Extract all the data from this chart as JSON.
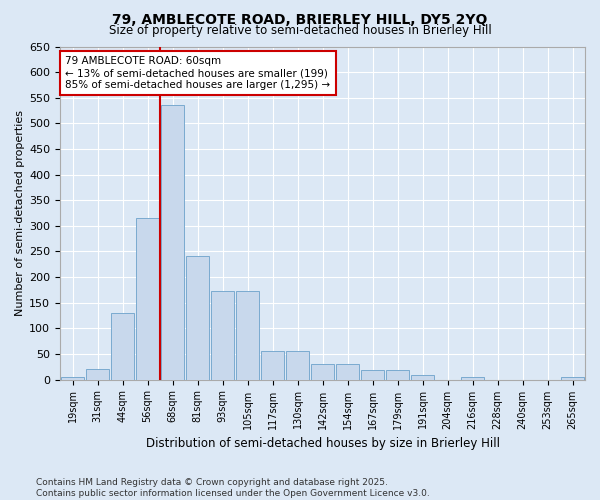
{
  "title": "79, AMBLECOTE ROAD, BRIERLEY HILL, DY5 2YQ",
  "subtitle": "Size of property relative to semi-detached houses in Brierley Hill",
  "xlabel": "Distribution of semi-detached houses by size in Brierley Hill",
  "ylabel": "Number of semi-detached properties",
  "categories": [
    "19sqm",
    "31sqm",
    "44sqm",
    "56sqm",
    "68sqm",
    "81sqm",
    "93sqm",
    "105sqm",
    "117sqm",
    "130sqm",
    "142sqm",
    "154sqm",
    "167sqm",
    "179sqm",
    "191sqm",
    "204sqm",
    "216sqm",
    "228sqm",
    "240sqm",
    "253sqm",
    "265sqm"
  ],
  "values": [
    5,
    20,
    130,
    315,
    535,
    242,
    172,
    172,
    55,
    55,
    30,
    30,
    18,
    18,
    8,
    0,
    5,
    0,
    0,
    0,
    5
  ],
  "bar_color": "#c8d8ec",
  "bar_edge_color": "#7aaad0",
  "red_line_x": 3.5,
  "red_line_color": "#cc0000",
  "annotation_title": "79 AMBLECOTE ROAD: 60sqm",
  "annotation_line1": "← 13% of semi-detached houses are smaller (199)",
  "annotation_line2": "85% of semi-detached houses are larger (1,295) →",
  "annotation_box_facecolor": "#ffffff",
  "annotation_box_edgecolor": "#cc0000",
  "ylim": [
    0,
    650
  ],
  "yticks": [
    0,
    50,
    100,
    150,
    200,
    250,
    300,
    350,
    400,
    450,
    500,
    550,
    600,
    650
  ],
  "footnote1": "Contains HM Land Registry data © Crown copyright and database right 2025.",
  "footnote2": "Contains public sector information licensed under the Open Government Licence v3.0.",
  "background_color": "#dce8f5",
  "grid_color": "#ffffff"
}
